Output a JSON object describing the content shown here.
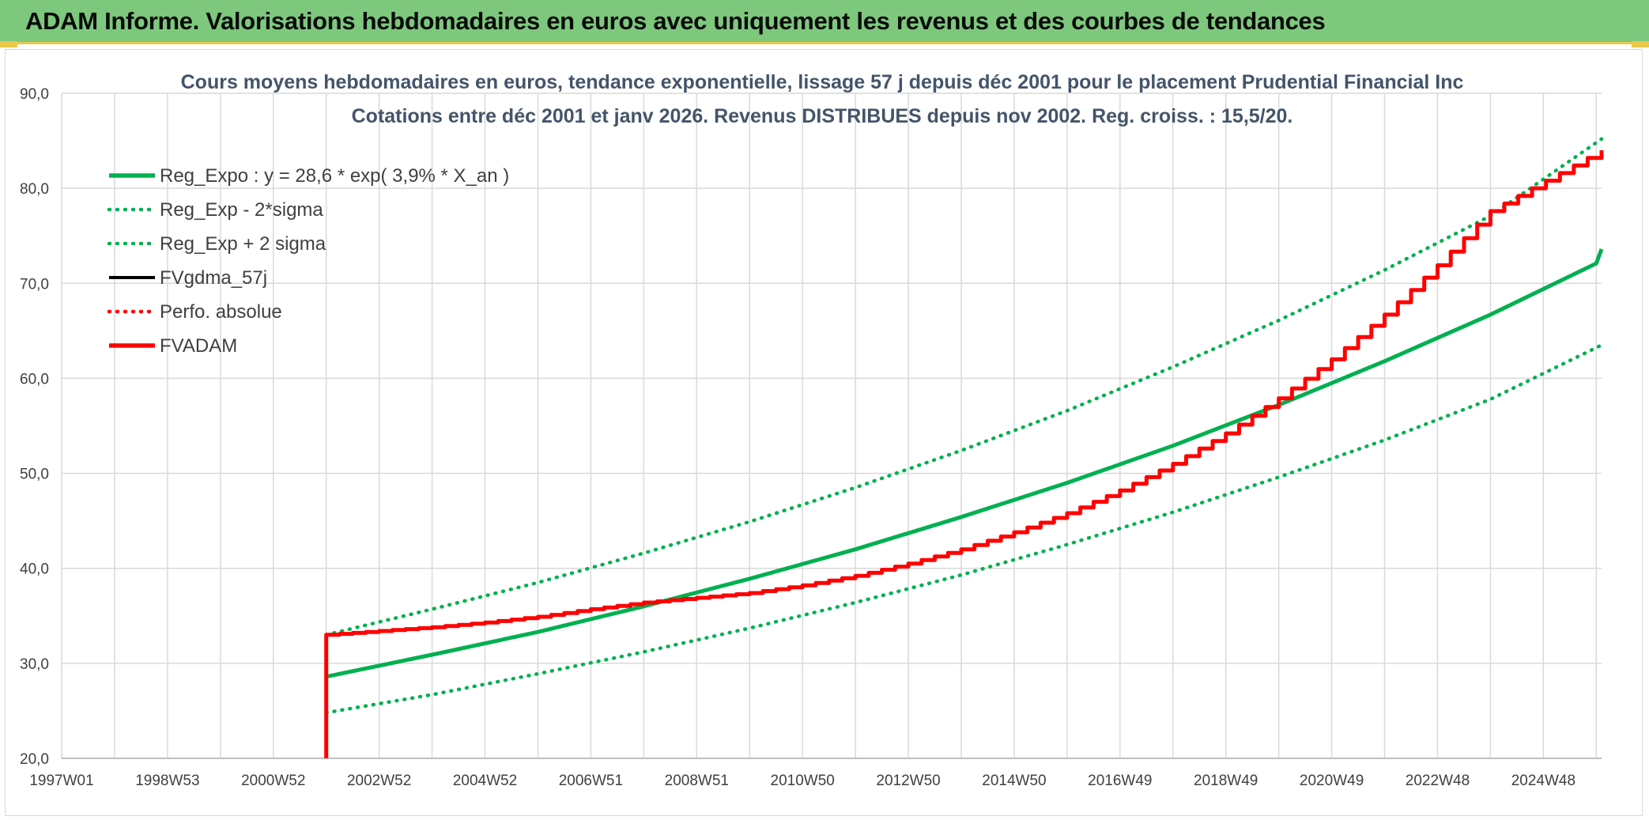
{
  "banner": {
    "title": "ADAM Informe. Valorisations hebdomadaires en euros avec uniquement les revenus et des courbes de tendances",
    "background": "#7dc87d"
  },
  "chart_data": {
    "type": "line",
    "title": "Cours moyens hebdomadaires en euros, tendance exponentielle, lissage 57 j depuis déc 2001 pour le placement Prudential Financial Inc",
    "subtitle": "Cotations entre déc 2001 et janv 2026. Revenus DISTRIBUES depuis nov 2002. Reg. croiss. : 15,5/20.",
    "xlabel": "",
    "ylabel": "",
    "ylim": [
      20,
      90
    ],
    "y_ticks": [
      "20,0",
      "30,0",
      "40,0",
      "50,0",
      "60,0",
      "70,0",
      "80,0",
      "90,0"
    ],
    "x_range_years": [
      1997.0,
      2026.1
    ],
    "x_ticks": [
      {
        "label": "1997W01",
        "year": 1997.0
      },
      {
        "label": "1998W53",
        "year": 1999.0
      },
      {
        "label": "2000W52",
        "year": 2001.0
      },
      {
        "label": "2002W52",
        "year": 2003.0
      },
      {
        "label": "2004W52",
        "year": 2005.0
      },
      {
        "label": "2006W51",
        "year": 2007.0
      },
      {
        "label": "2008W51",
        "year": 2009.0
      },
      {
        "label": "2010W50",
        "year": 2011.0
      },
      {
        "label": "2012W50",
        "year": 2013.0
      },
      {
        "label": "2014W50",
        "year": 2015.0
      },
      {
        "label": "2016W49",
        "year": 2017.0
      },
      {
        "label": "2018W49",
        "year": 2019.0
      },
      {
        "label": "2020W49",
        "year": 2021.0
      },
      {
        "label": "2022W48",
        "year": 2023.0
      },
      {
        "label": "2024W48",
        "year": 2025.0
      }
    ],
    "grid": true,
    "legend_position": "top-left",
    "series": [
      {
        "name": "Reg_Expo : y = 28,6 * exp( 3,9% *  X_an )",
        "color": "#00b050",
        "style": "solid",
        "points": [
          [
            2002.0,
            28.6
          ],
          [
            2004.0,
            30.9
          ],
          [
            2006.0,
            33.3
          ],
          [
            2008.0,
            36.0
          ],
          [
            2010.0,
            38.9
          ],
          [
            2012.0,
            42.0
          ],
          [
            2014.0,
            45.4
          ],
          [
            2016.0,
            49.0
          ],
          [
            2018.0,
            52.9
          ],
          [
            2020.0,
            57.2
          ],
          [
            2022.0,
            61.8
          ],
          [
            2024.0,
            66.7
          ],
          [
            2026.0,
            72.1
          ],
          [
            2026.1,
            73.6
          ]
        ]
      },
      {
        "name": "Reg_Exp - 2*sigma",
        "color": "#00b050",
        "style": "dotted",
        "points": [
          [
            2002.0,
            24.8
          ],
          [
            2004.0,
            26.7
          ],
          [
            2006.0,
            28.9
          ],
          [
            2008.0,
            31.2
          ],
          [
            2010.0,
            33.7
          ],
          [
            2012.0,
            36.4
          ],
          [
            2014.0,
            39.3
          ],
          [
            2016.0,
            42.5
          ],
          [
            2018.0,
            45.9
          ],
          [
            2020.0,
            49.6
          ],
          [
            2022.0,
            53.5
          ],
          [
            2024.0,
            57.8
          ],
          [
            2026.1,
            63.5
          ]
        ]
      },
      {
        "name": "Reg_Exp + 2 sigma",
        "color": "#00b050",
        "style": "dotted",
        "points": [
          [
            2002.0,
            33.0
          ],
          [
            2004.0,
            35.7
          ],
          [
            2006.0,
            38.5
          ],
          [
            2008.0,
            41.6
          ],
          [
            2010.0,
            44.9
          ],
          [
            2012.0,
            48.5
          ],
          [
            2014.0,
            52.4
          ],
          [
            2016.0,
            56.6
          ],
          [
            2018.0,
            61.2
          ],
          [
            2020.0,
            66.1
          ],
          [
            2022.0,
            71.4
          ],
          [
            2024.0,
            77.1
          ],
          [
            2026.1,
            85.2
          ]
        ]
      },
      {
        "name": "FVgdma_57j",
        "color": "#000000",
        "style": "solid",
        "points": [
          [
            2002.0,
            33.0
          ],
          [
            2003.0,
            33.4
          ],
          [
            2004.0,
            33.8
          ],
          [
            2005.0,
            34.3
          ],
          [
            2006.0,
            34.9
          ],
          [
            2007.0,
            35.7
          ],
          [
            2008.0,
            36.4
          ],
          [
            2009.0,
            36.9
          ],
          [
            2010.0,
            37.4
          ],
          [
            2011.0,
            38.2
          ],
          [
            2012.0,
            39.2
          ],
          [
            2013.0,
            40.5
          ],
          [
            2014.0,
            42.0
          ],
          [
            2015.0,
            43.8
          ],
          [
            2016.0,
            45.8
          ],
          [
            2017.0,
            48.2
          ],
          [
            2018.0,
            51.0
          ],
          [
            2019.0,
            54.2
          ],
          [
            2020.0,
            57.9
          ],
          [
            2021.0,
            62.0
          ],
          [
            2022.0,
            66.7
          ],
          [
            2023.0,
            71.9
          ],
          [
            2024.0,
            77.6
          ],
          [
            2026.1,
            84.0
          ]
        ]
      },
      {
        "name": "Perfo. absolue",
        "color": "#ff0000",
        "style": "dotted",
        "points": []
      },
      {
        "name": "FVADAM",
        "color": "#ff0000",
        "style": "solid",
        "points": [
          [
            2002.0,
            20.0
          ],
          [
            2002.0,
            33.0
          ],
          [
            2003.0,
            33.4
          ],
          [
            2004.0,
            33.8
          ],
          [
            2005.0,
            34.3
          ],
          [
            2006.0,
            34.9
          ],
          [
            2007.0,
            35.7
          ],
          [
            2008.0,
            36.4
          ],
          [
            2009.0,
            36.9
          ],
          [
            2010.0,
            37.4
          ],
          [
            2011.0,
            38.2
          ],
          [
            2012.0,
            39.2
          ],
          [
            2013.0,
            40.5
          ],
          [
            2014.0,
            42.0
          ],
          [
            2015.0,
            43.8
          ],
          [
            2016.0,
            45.8
          ],
          [
            2017.0,
            48.2
          ],
          [
            2018.0,
            51.0
          ],
          [
            2019.0,
            54.2
          ],
          [
            2020.0,
            57.9
          ],
          [
            2021.0,
            62.0
          ],
          [
            2022.0,
            66.7
          ],
          [
            2023.0,
            71.9
          ],
          [
            2024.0,
            77.6
          ],
          [
            2026.1,
            84.0
          ]
        ]
      }
    ]
  }
}
